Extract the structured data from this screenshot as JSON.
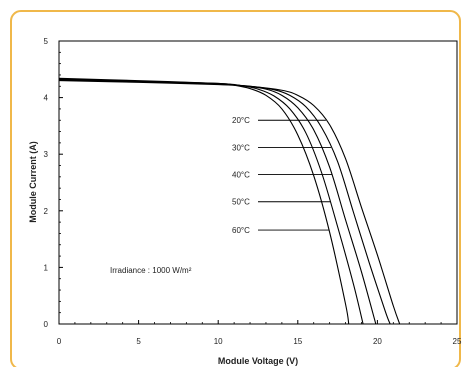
{
  "colors": {
    "frame": "#f0b84a",
    "curve": "#000000",
    "axis": "#000000"
  },
  "chart_data": {
    "type": "line",
    "title": "",
    "xlabel": "Module Voltage (V)",
    "ylabel": "Module Current (A)",
    "xlim": [
      0,
      25
    ],
    "ylim": [
      0,
      5
    ],
    "xticks": [
      "0",
      "5",
      "10",
      "15",
      "20",
      "25"
    ],
    "yticks": [
      "0",
      "1",
      "2",
      "3",
      "4",
      "5"
    ],
    "grid": false,
    "annotation": "Irradiance : 1000 W/m²",
    "series": [
      {
        "name": "20°C",
        "x": [
          0,
          5,
          10,
          12,
          14,
          15,
          16,
          17,
          18,
          19,
          20,
          21,
          21.4
        ],
        "y": [
          4.3,
          4.27,
          4.23,
          4.2,
          4.13,
          4.04,
          3.86,
          3.52,
          2.92,
          2.06,
          1.22,
          0.32,
          0
        ]
      },
      {
        "name": "30°C",
        "x": [
          0,
          5,
          10,
          12,
          13.5,
          14.5,
          15.5,
          16.5,
          17.5,
          18.5,
          19.5,
          20.5,
          20.8
        ],
        "y": [
          4.31,
          4.28,
          4.24,
          4.2,
          4.14,
          4.04,
          3.84,
          3.47,
          2.87,
          1.97,
          1.07,
          0.22,
          0
        ]
      },
      {
        "name": "40°C",
        "x": [
          0,
          5,
          10,
          11.5,
          13,
          14,
          15,
          16,
          17,
          18,
          19,
          19.9
        ],
        "y": [
          4.32,
          4.29,
          4.24,
          4.21,
          4.15,
          4.04,
          3.82,
          3.43,
          2.77,
          1.84,
          0.92,
          0
        ]
      },
      {
        "name": "50°C",
        "x": [
          0,
          5,
          10,
          11.5,
          12.5,
          13.5,
          14.5,
          15.5,
          16.5,
          17.5,
          18.5,
          19.1
        ],
        "y": [
          4.33,
          4.29,
          4.25,
          4.21,
          4.15,
          4.03,
          3.8,
          3.38,
          2.67,
          1.72,
          0.7,
          0
        ]
      },
      {
        "name": "60°C",
        "x": [
          0,
          5,
          10,
          11,
          12,
          13,
          14,
          15,
          16,
          17,
          18,
          18.2
        ],
        "y": [
          4.34,
          4.3,
          4.25,
          4.22,
          4.16,
          4.04,
          3.8,
          3.34,
          2.62,
          1.62,
          0.35,
          0
        ]
      }
    ]
  }
}
